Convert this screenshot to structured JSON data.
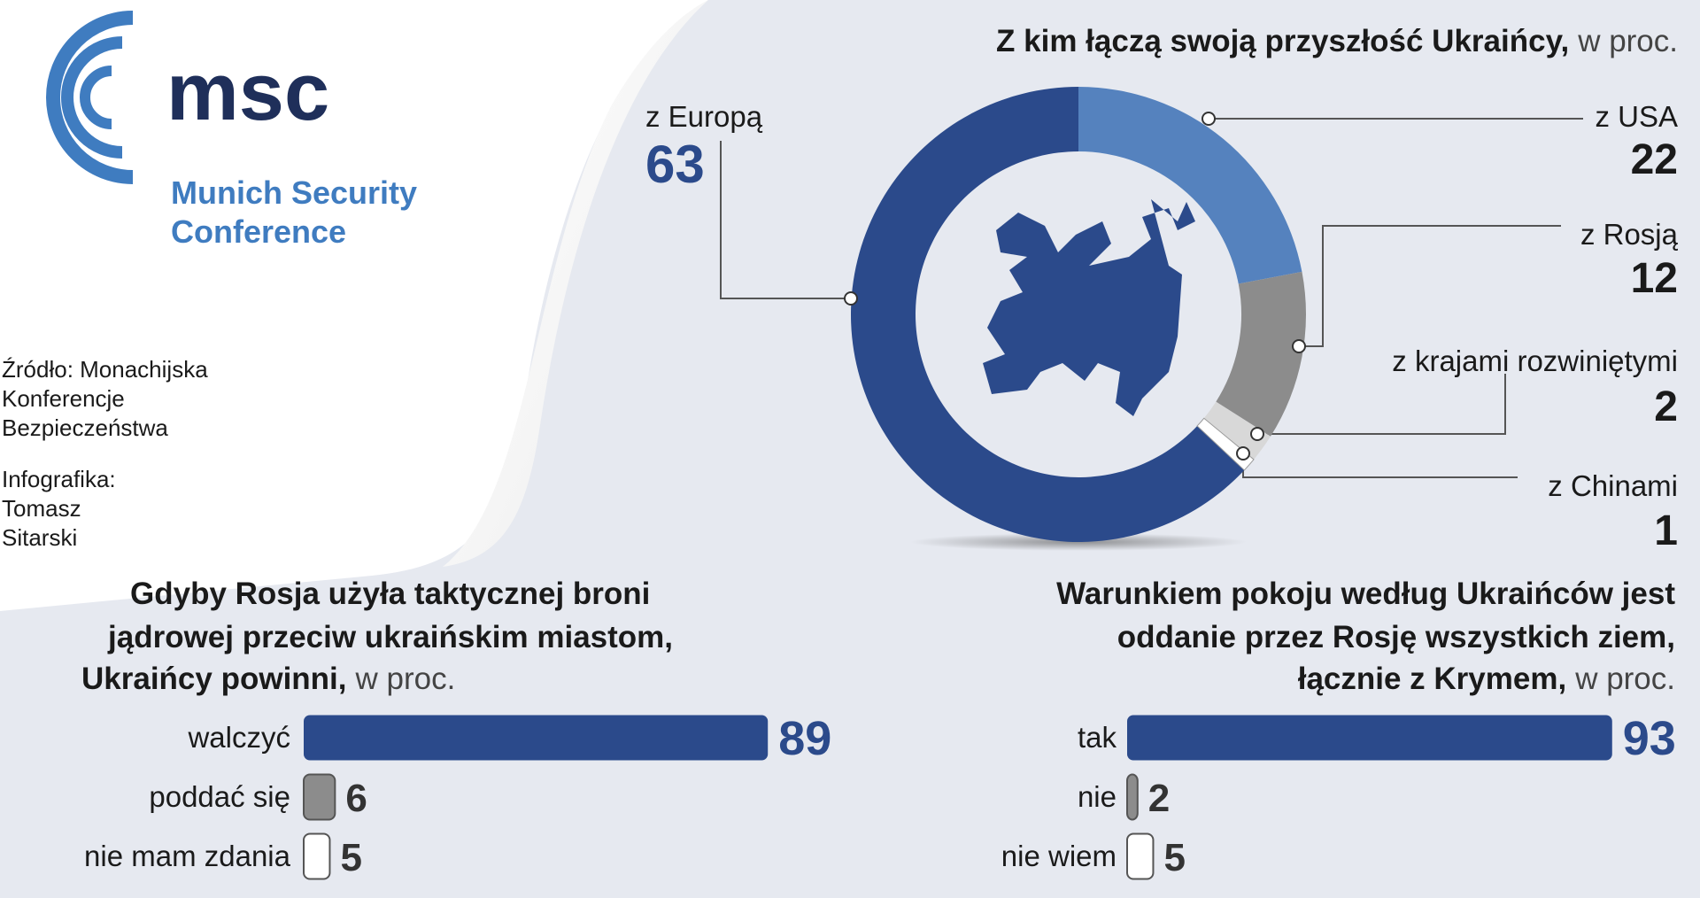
{
  "logo": {
    "mark": "msc",
    "name": [
      "Munich Security",
      "Conference"
    ]
  },
  "source": {
    "lines": [
      "Źródło: Monachijska",
      "Konferencje",
      "Bezpieczeństwa"
    ]
  },
  "credit": {
    "lines": [
      "Infografika:",
      "Tomasz",
      "Sitarski"
    ]
  },
  "chart_data": [
    {
      "type": "donut",
      "title": "Z kim łączą swoją przyszłość Ukraińcy,",
      "subtitle": "w proc.",
      "categories": [
        "z Europą",
        "z USA",
        "z Rosją",
        "z krajami rozwiniętymi",
        "z Chinami"
      ],
      "values": [
        63,
        22,
        12,
        2,
        1
      ],
      "colors": [
        "#2b4a8b",
        "#5582be",
        "#8c8c8c",
        "#d8d8d8",
        "#ffffff"
      ]
    },
    {
      "type": "bar",
      "title": [
        "Gdyby Rosja użyła taktycznej broni",
        "jądrowej przeciw ukraińskim miastom,",
        "Ukraińcy powinni,"
      ],
      "subtitle": "w proc.",
      "categories": [
        "walczyć",
        "poddać się",
        "nie mam zdania"
      ],
      "values": [
        89,
        6,
        5
      ],
      "colors": [
        "#2b4a8b",
        "#8c8c8c",
        "#ffffff"
      ]
    },
    {
      "type": "bar",
      "title": [
        "Warunkiem pokoju według Ukraińców jest",
        "oddanie przez Rosję wszystkich ziem,",
        "łącznie z Krymem,"
      ],
      "subtitle": "w proc.",
      "categories": [
        "tak",
        "nie",
        "nie wiem"
      ],
      "values": [
        93,
        2,
        5
      ],
      "colors": [
        "#2b4a8b",
        "#8c8c8c",
        "#ffffff"
      ]
    }
  ]
}
